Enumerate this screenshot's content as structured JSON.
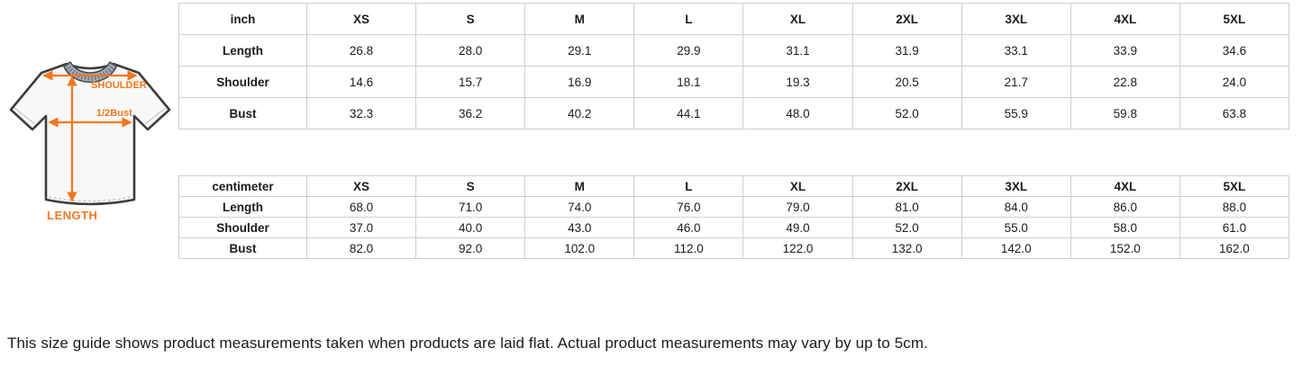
{
  "diagram": {
    "labels": {
      "shoulder": "SHOULDER",
      "half_bust": "1/2Bust",
      "length": "LENGTH"
    },
    "accent_color": "#F4771F",
    "shirt_outline_color": "#3d3d3d",
    "collar_color": "#a7adbb"
  },
  "tables": [
    {
      "unit": "inch",
      "sizes": [
        "XS",
        "S",
        "M",
        "L",
        "XL",
        "2XL",
        "3XL",
        "4XL",
        "5XL"
      ],
      "rows": [
        {
          "label": "Length",
          "values": [
            "26.8",
            "28.0",
            "29.1",
            "29.9",
            "31.1",
            "31.9",
            "33.1",
            "33.9",
            "34.6"
          ]
        },
        {
          "label": "Shoulder",
          "values": [
            "14.6",
            "15.7",
            "16.9",
            "18.1",
            "19.3",
            "20.5",
            "21.7",
            "22.8",
            "24.0"
          ]
        },
        {
          "label": "Bust",
          "values": [
            "32.3",
            "36.2",
            "40.2",
            "44.1",
            "48.0",
            "52.0",
            "55.9",
            "59.8",
            "63.8"
          ]
        }
      ]
    },
    {
      "unit": "centimeter",
      "sizes": [
        "XS",
        "S",
        "M",
        "L",
        "XL",
        "2XL",
        "3XL",
        "4XL",
        "5XL"
      ],
      "rows": [
        {
          "label": "Length",
          "values": [
            "68.0",
            "71.0",
            "74.0",
            "76.0",
            "79.0",
            "81.0",
            "84.0",
            "86.0",
            "88.0"
          ]
        },
        {
          "label": "Shoulder",
          "values": [
            "37.0",
            "40.0",
            "43.0",
            "46.0",
            "49.0",
            "52.0",
            "55.0",
            "58.0",
            "61.0"
          ]
        },
        {
          "label": "Bust",
          "values": [
            "82.0",
            "92.0",
            "102.0",
            "112.0",
            "122.0",
            "132.0",
            "142.0",
            "152.0",
            "162.0"
          ]
        }
      ]
    }
  ],
  "footer": {
    "note": "This size guide shows product measurements taken when products are laid flat. Actual product measurements may vary by up to 5cm."
  }
}
